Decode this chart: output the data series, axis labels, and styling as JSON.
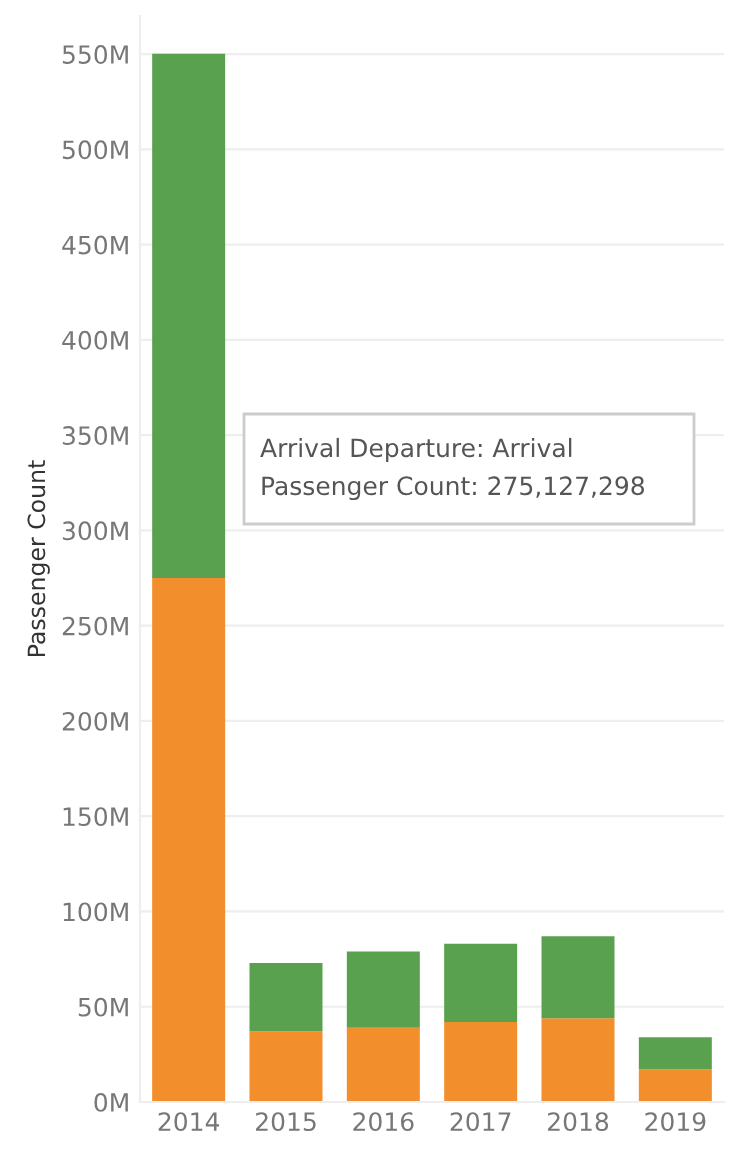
{
  "chart_data": {
    "type": "bar",
    "stacked": true,
    "ylabel": "Passenger Count",
    "categories": [
      "2014",
      "2015",
      "2016",
      "2017",
      "2018",
      "2019"
    ],
    "series": [
      {
        "color": "#f28e2b",
        "values": [
          275,
          37,
          39,
          42,
          44,
          17
        ]
      },
      {
        "color": "#59a14f",
        "values": [
          275.127298,
          36,
          40,
          41,
          43,
          17
        ]
      }
    ],
    "ylim": [
      0,
      570
    ],
    "yticks": [
      {
        "value": 0,
        "label": "0M"
      },
      {
        "value": 50,
        "label": "50M"
      },
      {
        "value": 100,
        "label": "100M"
      },
      {
        "value": 150,
        "label": "150M"
      },
      {
        "value": 200,
        "label": "200M"
      },
      {
        "value": 250,
        "label": "250M"
      },
      {
        "value": 300,
        "label": "300M"
      },
      {
        "value": 350,
        "label": "350M"
      },
      {
        "value": 400,
        "label": "400M"
      },
      {
        "value": 450,
        "label": "450M"
      },
      {
        "value": 500,
        "label": "500M"
      },
      {
        "value": 550,
        "label": "550M"
      }
    ],
    "grid": "y",
    "annotations": [
      "Arrival Departure: Arrival",
      "Passenger Count: 275,127,298"
    ]
  }
}
